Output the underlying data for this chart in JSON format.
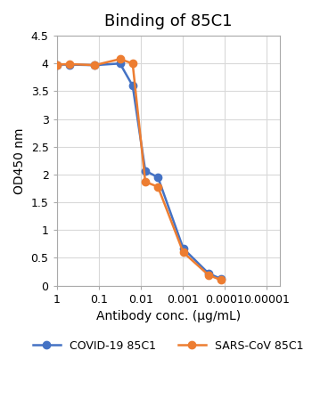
{
  "title": "Binding of 85C1",
  "xlabel": "Antibody conc. (μg/mL)",
  "ylabel": "OD450 nm",
  "xlim_left": 1,
  "xlim_right": 5e-06,
  "ylim": [
    0,
    4.5
  ],
  "yticks": [
    0,
    0.5,
    1,
    1.5,
    2,
    2.5,
    3,
    3.5,
    4,
    4.5
  ],
  "xtick_labels": [
    "1",
    "0.1",
    "0.01",
    "0.001",
    "0.0001",
    "0.00001"
  ],
  "xtick_values": [
    1,
    0.1,
    0.01,
    0.001,
    0.0001,
    1e-05
  ],
  "covid_x": [
    1,
    0.5,
    0.125,
    0.03125,
    0.015625,
    0.007813,
    0.003906,
    0.000977,
    0.000244,
    0.000122
  ],
  "covid_y": [
    3.98,
    3.98,
    3.97,
    4.0,
    3.6,
    2.07,
    1.95,
    0.67,
    0.22,
    0.12
  ],
  "sars_x": [
    1,
    0.5,
    0.125,
    0.03125,
    0.015625,
    0.007813,
    0.003906,
    0.000977,
    0.000244,
    0.000122
  ],
  "sars_y": [
    3.98,
    3.99,
    3.97,
    4.08,
    4.0,
    1.87,
    1.78,
    0.6,
    0.19,
    0.1
  ],
  "covid_color": "#4472c4",
  "sars_color": "#ed7d31",
  "covid_label": "COVID-19 85C1",
  "sars_label": "SARS-CoV 85C1",
  "bg_color": "#ffffff",
  "grid_color": "#d9d9d9",
  "title_fontsize": 13,
  "axis_fontsize": 10,
  "tick_fontsize": 9,
  "legend_fontsize": 9,
  "marker_size": 6,
  "line_width": 1.8
}
